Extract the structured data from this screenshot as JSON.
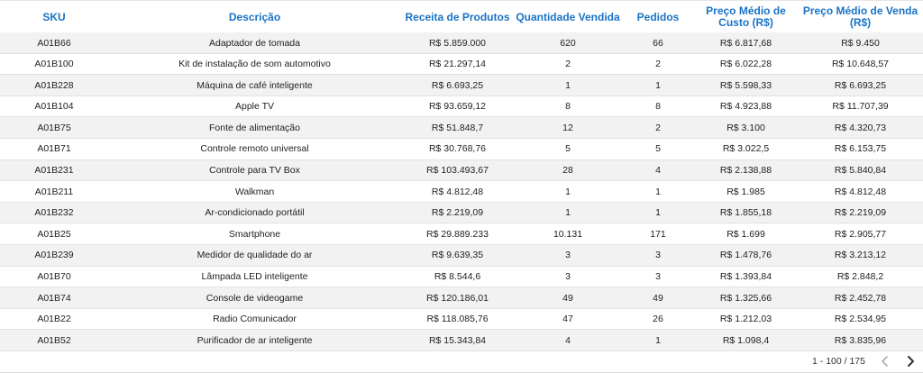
{
  "table": {
    "columns": {
      "sku": "SKU",
      "descricao": "Descrição",
      "receita": "Receita de Produtos",
      "quantidade": "Quantidade Vendida",
      "pedidos": "Pedidos",
      "custo_line1": "Preço Médio de",
      "custo_line2": "Custo (R$)",
      "venda_line1": "Preço Médio de Venda",
      "venda_line2": "(R$)"
    },
    "rows": [
      {
        "sku": "A01B66",
        "descricao": "Adaptador de tomada",
        "receita": "R$ 5.859.000",
        "quantidade": "620",
        "pedidos": "66",
        "custo": "R$ 6.817,68",
        "venda": "R$ 9.450"
      },
      {
        "sku": "A01B100",
        "descricao": "Kit de instalação de som automotivo",
        "receita": "R$ 21.297,14",
        "quantidade": "2",
        "pedidos": "2",
        "custo": "R$ 6.022,28",
        "venda": "R$ 10.648,57"
      },
      {
        "sku": "A01B228",
        "descricao": "Máquina de café inteligente",
        "receita": "R$ 6.693,25",
        "quantidade": "1",
        "pedidos": "1",
        "custo": "R$ 5.598,33",
        "venda": "R$ 6.693,25"
      },
      {
        "sku": "A01B104",
        "descricao": "Apple TV",
        "receita": "R$ 93.659,12",
        "quantidade": "8",
        "pedidos": "8",
        "custo": "R$ 4.923,88",
        "venda": "R$ 11.707,39"
      },
      {
        "sku": "A01B75",
        "descricao": "Fonte de alimentação",
        "receita": "R$ 51.848,7",
        "quantidade": "12",
        "pedidos": "2",
        "custo": "R$ 3.100",
        "venda": "R$ 4.320,73"
      },
      {
        "sku": "A01B71",
        "descricao": "Controle remoto universal",
        "receita": "R$ 30.768,76",
        "quantidade": "5",
        "pedidos": "5",
        "custo": "R$ 3.022,5",
        "venda": "R$ 6.153,75"
      },
      {
        "sku": "A01B231",
        "descricao": "Controle para TV Box",
        "receita": "R$ 103.493,67",
        "quantidade": "28",
        "pedidos": "4",
        "custo": "R$ 2.138,88",
        "venda": "R$ 5.840,84"
      },
      {
        "sku": "A01B211",
        "descricao": "Walkman",
        "receita": "R$ 4.812,48",
        "quantidade": "1",
        "pedidos": "1",
        "custo": "R$ 1.985",
        "venda": "R$ 4.812,48"
      },
      {
        "sku": "A01B232",
        "descricao": "Ar-condicionado portátil",
        "receita": "R$ 2.219,09",
        "quantidade": "1",
        "pedidos": "1",
        "custo": "R$ 1.855,18",
        "venda": "R$ 2.219,09"
      },
      {
        "sku": "A01B25",
        "descricao": "Smartphone",
        "receita": "R$ 29.889.233",
        "quantidade": "10.131",
        "pedidos": "171",
        "custo": "R$ 1.699",
        "venda": "R$ 2.905,77"
      },
      {
        "sku": "A01B239",
        "descricao": "Medidor de qualidade do ar",
        "receita": "R$ 9.639,35",
        "quantidade": "3",
        "pedidos": "3",
        "custo": "R$ 1.478,76",
        "venda": "R$ 3.213,12"
      },
      {
        "sku": "A01B70",
        "descricao": "Lâmpada LED inteligente",
        "receita": "R$ 8.544,6",
        "quantidade": "3",
        "pedidos": "3",
        "custo": "R$ 1.393,84",
        "venda": "R$ 2.848,2"
      },
      {
        "sku": "A01B74",
        "descricao": "Console de videogame",
        "receita": "R$ 120.186,01",
        "quantidade": "49",
        "pedidos": "49",
        "custo": "R$ 1.325,66",
        "venda": "R$ 2.452,78"
      },
      {
        "sku": "A01B22",
        "descricao": "Radio Comunicador",
        "receita": "R$ 118.085,76",
        "quantidade": "47",
        "pedidos": "26",
        "custo": "R$ 1.212,03",
        "venda": "R$ 2.534,95"
      },
      {
        "sku": "A01B52",
        "descricao": "Purificador de ar inteligente",
        "receita": "R$ 15.343,84",
        "quantidade": "4",
        "pedidos": "1",
        "custo": "R$ 1.098,4",
        "venda": "R$ 3.835,96"
      }
    ]
  },
  "pagination": {
    "range_text": "1 - 100 / 175",
    "prev_icon": "chevron-left-icon",
    "next_icon": "chevron-right-icon",
    "prev_color": "#b0b0b0",
    "next_color": "#333333"
  },
  "colors": {
    "header_text": "#1a73c7",
    "row_alt": "#f2f2f2"
  }
}
